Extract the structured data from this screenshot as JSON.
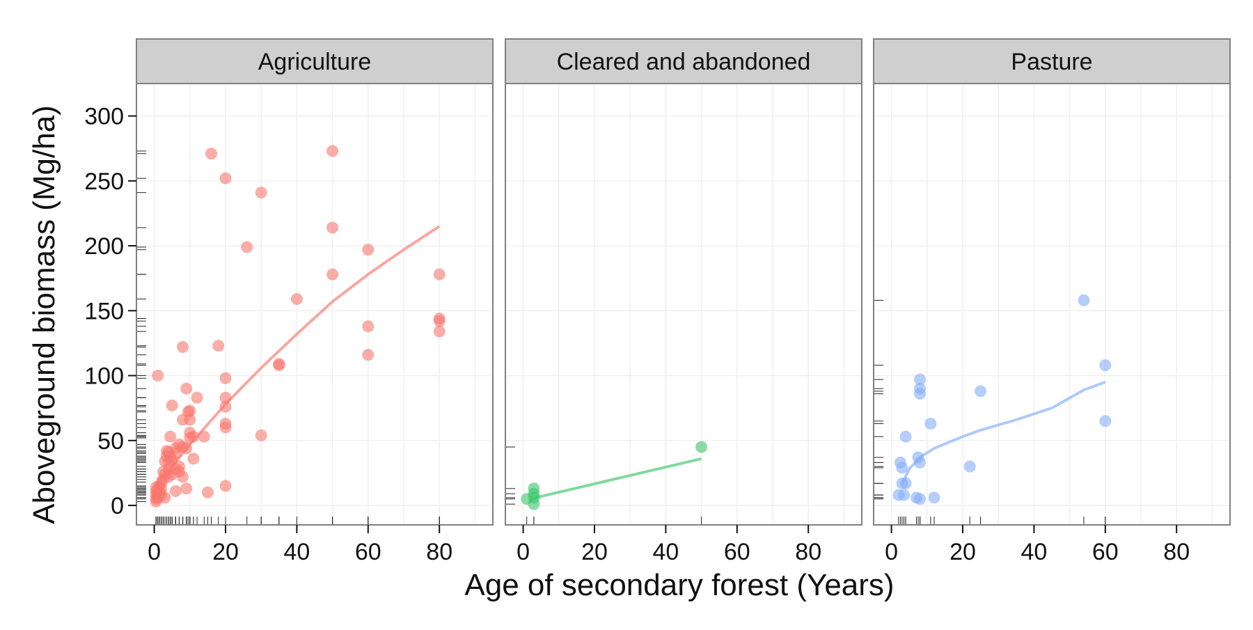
{
  "chart_data": {
    "type": "scatter",
    "xlabel": "Age of secondary forest (Years)",
    "ylabel": "Aboveground biomass (Mg/ha)",
    "xlim": [
      -5,
      95
    ],
    "ylim": [
      -15,
      325
    ],
    "x_ticks": [
      0,
      20,
      40,
      60,
      80
    ],
    "y_ticks": [
      0,
      50,
      100,
      150,
      200,
      250,
      300
    ],
    "grid": true,
    "rug": true,
    "panels": [
      {
        "strip": "Agriculture",
        "color": "#f8766d",
        "points": [
          [
            0.5,
            3
          ],
          [
            0.5,
            5
          ],
          [
            0.5,
            8
          ],
          [
            0.5,
            11
          ],
          [
            0.5,
            14
          ],
          [
            1,
            6
          ],
          [
            1,
            9
          ],
          [
            1,
            12
          ],
          [
            1,
            100
          ],
          [
            1.5,
            10
          ],
          [
            1.5,
            15
          ],
          [
            2,
            8
          ],
          [
            2,
            13
          ],
          [
            2,
            18
          ],
          [
            2.5,
            20
          ],
          [
            2.5,
            26
          ],
          [
            3,
            24
          ],
          [
            3,
            34
          ],
          [
            3,
            6
          ],
          [
            3.5,
            38
          ],
          [
            3.5,
            42
          ],
          [
            4,
            22
          ],
          [
            4,
            28
          ],
          [
            4,
            33
          ],
          [
            4,
            41
          ],
          [
            4.5,
            37
          ],
          [
            4.5,
            53
          ],
          [
            5,
            24
          ],
          [
            5,
            35
          ],
          [
            5,
            77
          ],
          [
            6,
            11
          ],
          [
            6,
            28
          ],
          [
            6,
            40
          ],
          [
            6,
            44
          ],
          [
            7,
            30
          ],
          [
            7,
            47
          ],
          [
            7,
            26
          ],
          [
            8,
            22
          ],
          [
            8,
            45
          ],
          [
            8,
            66
          ],
          [
            8,
            122
          ],
          [
            9,
            13
          ],
          [
            9,
            44
          ],
          [
            9,
            90
          ],
          [
            9.5,
            72
          ],
          [
            10,
            52
          ],
          [
            10,
            56
          ],
          [
            10,
            66
          ],
          [
            10,
            73
          ],
          [
            11,
            36
          ],
          [
            11,
            53
          ],
          [
            12,
            83
          ],
          [
            14,
            53
          ],
          [
            15,
            10
          ],
          [
            16,
            271
          ],
          [
            18,
            123
          ],
          [
            20,
            15
          ],
          [
            20,
            60
          ],
          [
            20,
            63
          ],
          [
            20,
            76
          ],
          [
            20,
            83
          ],
          [
            20,
            98
          ],
          [
            20,
            252
          ],
          [
            26,
            199
          ],
          [
            30,
            54
          ],
          [
            30,
            241
          ],
          [
            35,
            108
          ],
          [
            35,
            109
          ],
          [
            40,
            159
          ],
          [
            50,
            178
          ],
          [
            50,
            214
          ],
          [
            50,
            273
          ],
          [
            60,
            116
          ],
          [
            60,
            138
          ],
          [
            60,
            197
          ],
          [
            80,
            134
          ],
          [
            80,
            142
          ],
          [
            80,
            144
          ],
          [
            80,
            178
          ]
        ],
        "fit": [
          [
            0,
            15
          ],
          [
            5,
            30
          ],
          [
            10,
            47
          ],
          [
            20,
            78
          ],
          [
            30,
            106
          ],
          [
            40,
            132
          ],
          [
            50,
            157
          ],
          [
            60,
            178
          ],
          [
            70,
            197
          ],
          [
            80,
            215
          ]
        ]
      },
      {
        "strip": "Cleared and abandoned",
        "color": "#3cc46a",
        "points": [
          [
            1,
            5
          ],
          [
            3,
            1
          ],
          [
            3,
            6
          ],
          [
            3,
            9
          ],
          [
            3,
            13
          ],
          [
            50,
            45
          ]
        ],
        "fit": [
          [
            2,
            5
          ],
          [
            50,
            36
          ]
        ]
      },
      {
        "strip": "Pasture",
        "color": "#84aef8",
        "points": [
          [
            2,
            8
          ],
          [
            2.5,
            33
          ],
          [
            3,
            17
          ],
          [
            3,
            29
          ],
          [
            3.5,
            8
          ],
          [
            4,
            17
          ],
          [
            4,
            53
          ],
          [
            7,
            6
          ],
          [
            7.5,
            37
          ],
          [
            8,
            5
          ],
          [
            8,
            33
          ],
          [
            8,
            86
          ],
          [
            8,
            90
          ],
          [
            8,
            97
          ],
          [
            11,
            63
          ],
          [
            12,
            6
          ],
          [
            22,
            30
          ],
          [
            25,
            88
          ],
          [
            54,
            158
          ],
          [
            60,
            65
          ],
          [
            60,
            108
          ]
        ],
        "fit": [
          [
            3,
            17
          ],
          [
            5,
            28
          ],
          [
            8,
            37
          ],
          [
            12,
            44
          ],
          [
            20,
            53
          ],
          [
            25,
            58
          ],
          [
            35,
            66
          ],
          [
            45,
            75
          ],
          [
            54,
            89
          ],
          [
            60,
            95
          ]
        ]
      }
    ]
  }
}
